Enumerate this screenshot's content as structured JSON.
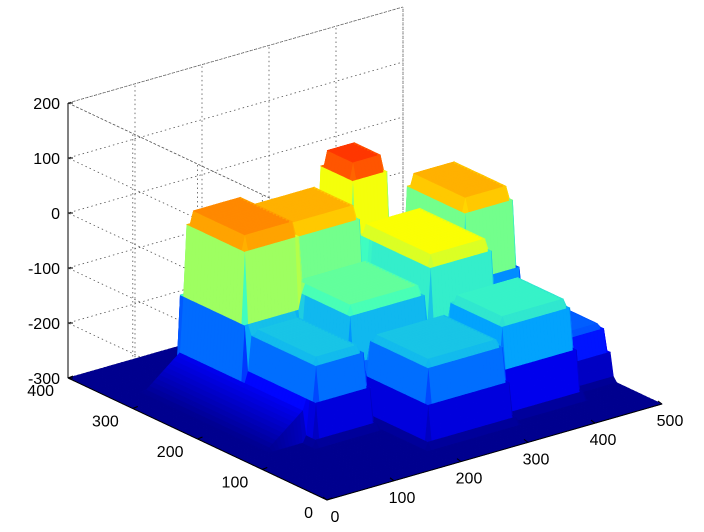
{
  "chart_data": {
    "type": "surface",
    "title": "",
    "xlabel": "",
    "ylabel": "",
    "zlabel": "",
    "xlim": [
      0,
      500
    ],
    "ylim": [
      0,
      400
    ],
    "zlim": [
      -300,
      200
    ],
    "x_ticks": [
      "0",
      "100",
      "200",
      "300",
      "400",
      "500"
    ],
    "y_ticks": [
      "0",
      "100",
      "200",
      "300",
      "400"
    ],
    "z_ticks": [
      "-300",
      "-200",
      "-100",
      "0",
      "100",
      "200"
    ],
    "grid": true,
    "colormap": [
      "#00008f",
      "#0000ff",
      "#00a0ff",
      "#40ffbf",
      "#ffff00",
      "#ff8000",
      "#ff0000",
      "#800000"
    ],
    "baseline_z": -300,
    "plateaus": [
      {
        "x": [
          100,
          190
        ],
        "y": [
          230,
          330
        ],
        "z": 10
      },
      {
        "x": [
          190,
          300
        ],
        "y": [
          250,
          330
        ],
        "z": -10
      },
      {
        "x": [
          300,
          360
        ],
        "y": [
          270,
          330
        ],
        "z": 50
      },
      {
        "x": [
          100,
          180
        ],
        "y": [
          120,
          230
        ],
        "z": -150
      },
      {
        "x": [
          180,
          300
        ],
        "y": [
          150,
          250
        ],
        "z": -100
      },
      {
        "x": [
          300,
          400
        ],
        "y": [
          150,
          270
        ],
        "z": -50
      },
      {
        "x": [
          400,
          480
        ],
        "y": [
          200,
          300
        ],
        "z": -10
      },
      {
        "x": [
          200,
          320
        ],
        "y": [
          50,
          150
        ],
        "z": -150
      },
      {
        "x": [
          320,
          430
        ],
        "y": [
          60,
          150
        ],
        "z": -120
      },
      {
        "x": [
          430,
          500
        ],
        "y": [
          80,
          200
        ],
        "z": -200
      }
    ]
  }
}
